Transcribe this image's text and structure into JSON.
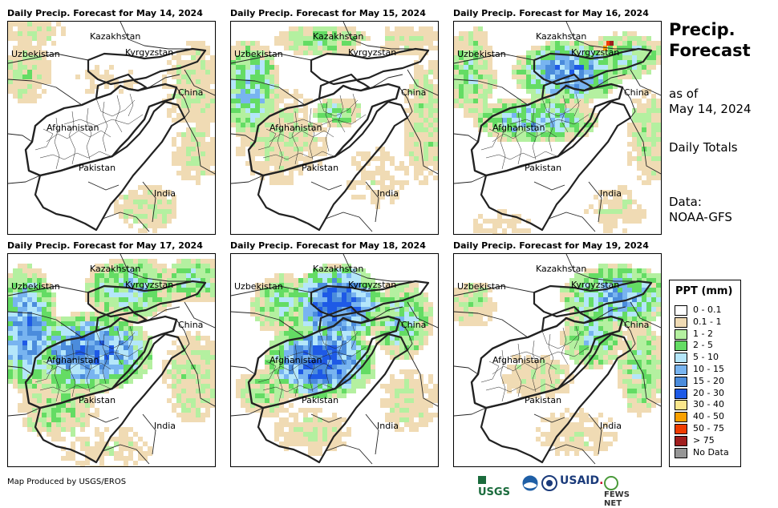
{
  "panels": [
    {
      "title": "Daily Precip. Forecast for May 14, 2024",
      "level": 0
    },
    {
      "title": "Daily Precip. Forecast for May 15, 2024",
      "level": 1
    },
    {
      "title": "Daily Precip. Forecast for May 16, 2024",
      "level": 2
    },
    {
      "title": "Daily Precip. Forecast for May 17, 2024",
      "level": 3
    },
    {
      "title": "Daily Precip. Forecast for May 18, 2024",
      "level": 4
    },
    {
      "title": "Daily Precip. Forecast for May 19, 2024",
      "level": 3
    }
  ],
  "country_labels": {
    "kazakhstan": "Kazakhstan",
    "uzbekistan": "Uzbekistan",
    "kyrgyzstan": "Kyrgyzstan",
    "china": "China",
    "afghanistan": "Afghanistan",
    "pakistan": "Pakistan",
    "india": "India"
  },
  "sidebar": {
    "title_line1": "Precip.",
    "title_line2": "Forecast",
    "as_of_line1": "as of",
    "as_of_line2": "May 14, 2024",
    "totals": "Daily Totals",
    "data_line1": "Data:",
    "data_line2": "NOAA-GFS"
  },
  "legend": {
    "title": "PPT (mm)",
    "items": [
      {
        "label": "0 - 0.1",
        "color": "#ffffff"
      },
      {
        "label": "0.1 - 1",
        "color": "#f0dbb4"
      },
      {
        "label": "1 - 2",
        "color": "#b4f0a0"
      },
      {
        "label": "2 - 5",
        "color": "#64dc64"
      },
      {
        "label": "5 - 10",
        "color": "#b4e6fa"
      },
      {
        "label": "10 - 15",
        "color": "#78b4f0"
      },
      {
        "label": "15 - 20",
        "color": "#4b8cdc"
      },
      {
        "label": "20 - 30",
        "color": "#1e5ae6"
      },
      {
        "label": "30 - 40",
        "color": "#fae68c"
      },
      {
        "label": "40 - 50",
        "color": "#faa000"
      },
      {
        "label": "50 - 75",
        "color": "#f03c00"
      },
      {
        "label": "> 75",
        "color": "#a01e1e"
      },
      {
        "label": "No Data",
        "color": "#969696"
      }
    ]
  },
  "credit": "Map Produced by USGS/EROS",
  "logos": {
    "usgs": "USGS",
    "usaid": "USAID",
    "fewsnet": "FEWS NET"
  }
}
